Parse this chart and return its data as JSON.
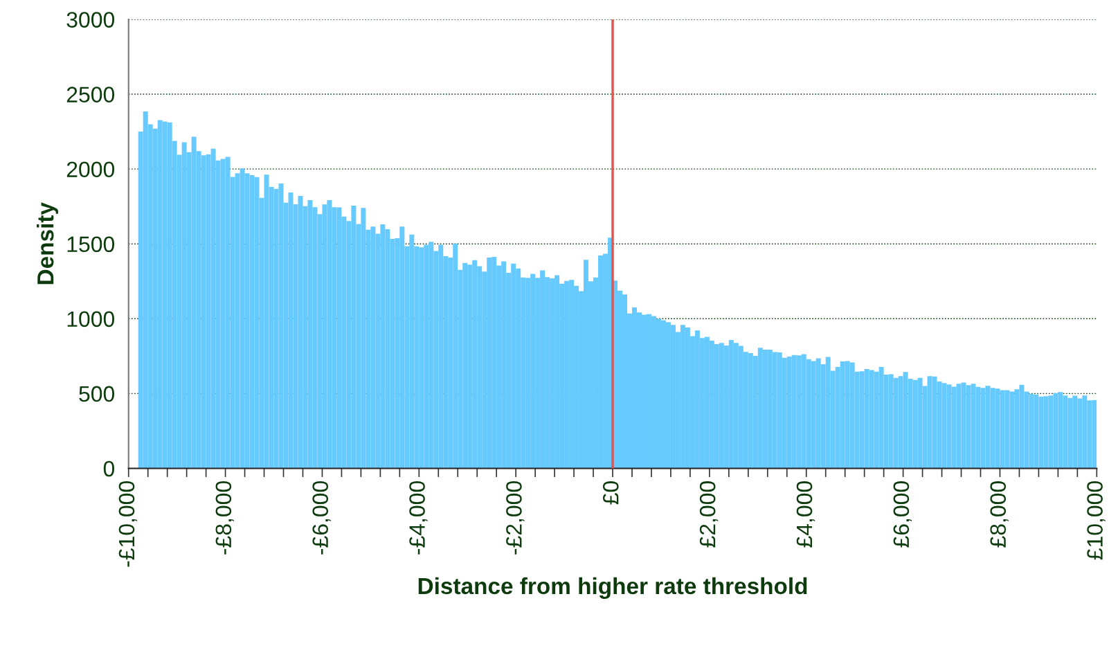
{
  "chart_data": {
    "type": "histogram",
    "xlabel": "Distance from higher rate threshold",
    "ylabel": "Density",
    "color": "#66cafe",
    "bins": [
      -9800,
      -9700,
      -9600,
      -9500,
      -9400,
      -9300,
      -9200,
      -9100,
      -9000,
      -8900,
      -8800,
      -8700,
      -8600,
      -8500,
      -8400,
      -8300,
      -8200,
      -8100,
      -8000,
      -7900,
      -7800,
      -7700,
      -7600,
      -7500,
      -7400,
      -7300,
      -7200,
      -7100,
      -7000,
      -6900,
      -6800,
      -6700,
      -6600,
      -6500,
      -6400,
      -6300,
      -6200,
      -6100,
      -6000,
      -5900,
      -5800,
      -5700,
      -5600,
      -5500,
      -5400,
      -5300,
      -5200,
      -5100,
      -5000,
      -4900,
      -4800,
      -4700,
      -4600,
      -4500,
      -4400,
      -4300,
      -4200,
      -4100,
      -4000,
      -3900,
      -3800,
      -3700,
      -3600,
      -3500,
      -3400,
      -3300,
      -3200,
      -3100,
      -3000,
      -2900,
      -2800,
      -2700,
      -2600,
      -2500,
      -2400,
      -2300,
      -2200,
      -2100,
      -2000,
      -1900,
      -1800,
      -1700,
      -1600,
      -1500,
      -1400,
      -1300,
      -1200,
      -1100,
      -1000,
      -900,
      -800,
      -700,
      -600,
      -500,
      -400,
      -300,
      -200,
      -100,
      0,
      100,
      200,
      300,
      400,
      500,
      600,
      700,
      800,
      900,
      1000,
      1100,
      1200,
      1300,
      1400,
      1500,
      1600,
      1700,
      1800,
      1900,
      2000,
      2100,
      2200,
      2300,
      2400,
      2500,
      2600,
      2700,
      2800,
      2900,
      3000,
      3100,
      3200,
      3300,
      3400,
      3500,
      3600,
      3700,
      3800,
      3900,
      4000,
      4100,
      4200,
      4300,
      4400,
      4500,
      4600,
      4700,
      4800,
      4900,
      5000,
      5100,
      5200,
      5300,
      5400,
      5500,
      5600,
      5700,
      5800,
      5900,
      6000,
      6100,
      6200,
      6300,
      6400,
      6500,
      6600,
      6700,
      6800,
      6900,
      7000,
      7100,
      7200,
      7300,
      7400,
      7500,
      7600,
      7700,
      7800,
      7900,
      8000,
      8100,
      8200,
      8300,
      8400,
      8500,
      8600,
      8700,
      8800,
      8900,
      9000,
      9100,
      9200,
      9300,
      9400,
      9500,
      9600,
      9700,
      9800,
      9900,
      10000
    ],
    "values": [
      2250,
      2385,
      2299,
      2270,
      2327,
      2317,
      2312,
      2188,
      2095,
      2179,
      2113,
      2216,
      2120,
      2092,
      2098,
      2136,
      2057,
      2068,
      2082,
      1947,
      1972,
      2004,
      1972,
      1959,
      1946,
      1808,
      1962,
      1880,
      1868,
      1903,
      1775,
      1843,
      1765,
      1820,
      1752,
      1792,
      1745,
      1699,
      1764,
      1793,
      1745,
      1744,
      1682,
      1653,
      1755,
      1633,
      1740,
      1595,
      1616,
      1568,
      1631,
      1598,
      1533,
      1538,
      1615,
      1485,
      1562,
      1484,
      1477,
      1494,
      1514,
      1452,
      1494,
      1418,
      1408,
      1502,
      1326,
      1373,
      1361,
      1391,
      1351,
      1315,
      1409,
      1413,
      1355,
      1383,
      1307,
      1368,
      1335,
      1275,
      1273,
      1300,
      1273,
      1323,
      1278,
      1270,
      1290,
      1234,
      1252,
      1259,
      1220,
      1184,
      1393,
      1250,
      1275,
      1422,
      1434,
      1542,
      1255,
      1187,
      1162,
      1035,
      1075,
      1042,
      1027,
      1030,
      1017,
      1000,
      990,
      977,
      959,
      911,
      959,
      941,
      883,
      922,
      871,
      879,
      853,
      830,
      838,
      821,
      858,
      838,
      818,
      778,
      770,
      752,
      806,
      793,
      793,
      777,
      775,
      739,
      747,
      757,
      755,
      763,
      729,
      717,
      735,
      696,
      745,
      652,
      677,
      715,
      717,
      707,
      646,
      649,
      664,
      657,
      646,
      677,
      626,
      629,
      604,
      616,
      644,
      599,
      591,
      604,
      550,
      616,
      614,
      580,
      570,
      561,
      546,
      565,
      573,
      556,
      565,
      545,
      538,
      551,
      538,
      533,
      523,
      522,
      513,
      528,
      558,
      513,
      498,
      493,
      480,
      482,
      487,
      503,
      510,
      487,
      470,
      485,
      467,
      487,
      454,
      457
    ],
    "xlim": [
      -10000,
      10000
    ],
    "xticks": [
      {
        "value": -10000,
        "label": "-£10,000"
      },
      {
        "value": -9600,
        "label": null
      },
      {
        "value": -9200,
        "label": null
      },
      {
        "value": -8800,
        "label": null
      },
      {
        "value": -8400,
        "label": null
      },
      {
        "value": -8000,
        "label": "-£8,000"
      },
      {
        "value": -7600,
        "label": null
      },
      {
        "value": -7200,
        "label": null
      },
      {
        "value": -6800,
        "label": null
      },
      {
        "value": -6400,
        "label": null
      },
      {
        "value": -6000,
        "label": "-£6,000"
      },
      {
        "value": -5600,
        "label": null
      },
      {
        "value": -5200,
        "label": null
      },
      {
        "value": -4800,
        "label": null
      },
      {
        "value": -4400,
        "label": null
      },
      {
        "value": -4000,
        "label": "-£4,000"
      },
      {
        "value": -3600,
        "label": null
      },
      {
        "value": -3200,
        "label": null
      },
      {
        "value": -2800,
        "label": null
      },
      {
        "value": -2400,
        "label": null
      },
      {
        "value": -2000,
        "label": "-£2,000"
      },
      {
        "value": -1600,
        "label": null
      },
      {
        "value": -1200,
        "label": null
      },
      {
        "value": -800,
        "label": null
      },
      {
        "value": -400,
        "label": null
      },
      {
        "value": 0,
        "label": "£0"
      },
      {
        "value": 400,
        "label": null
      },
      {
        "value": 800,
        "label": null
      },
      {
        "value": 1200,
        "label": null
      },
      {
        "value": 1600,
        "label": null
      },
      {
        "value": 2000,
        "label": "£2,000"
      },
      {
        "value": 2400,
        "label": null
      },
      {
        "value": 2800,
        "label": null
      },
      {
        "value": 3200,
        "label": null
      },
      {
        "value": 3600,
        "label": null
      },
      {
        "value": 4000,
        "label": "£4,000"
      },
      {
        "value": 4400,
        "label": null
      },
      {
        "value": 4800,
        "label": null
      },
      {
        "value": 5200,
        "label": null
      },
      {
        "value": 5600,
        "label": null
      },
      {
        "value": 6000,
        "label": "£6,000"
      },
      {
        "value": 6400,
        "label": null
      },
      {
        "value": 6800,
        "label": null
      },
      {
        "value": 7200,
        "label": null
      },
      {
        "value": 7600,
        "label": null
      },
      {
        "value": 8000,
        "label": "£8,000"
      },
      {
        "value": 8400,
        "label": null
      },
      {
        "value": 8800,
        "label": null
      },
      {
        "value": 9200,
        "label": null
      },
      {
        "value": 9600,
        "label": null
      },
      {
        "value": 10000,
        "label": "£10,000"
      }
    ],
    "ylim": [
      0,
      3000
    ],
    "yticks": [
      0,
      500,
      1000,
      1500,
      2000,
      2500,
      3000
    ],
    "grid": "y",
    "ref_lines": [
      {
        "axis": "x",
        "value": 0,
        "color": "#dc5854"
      }
    ]
  }
}
